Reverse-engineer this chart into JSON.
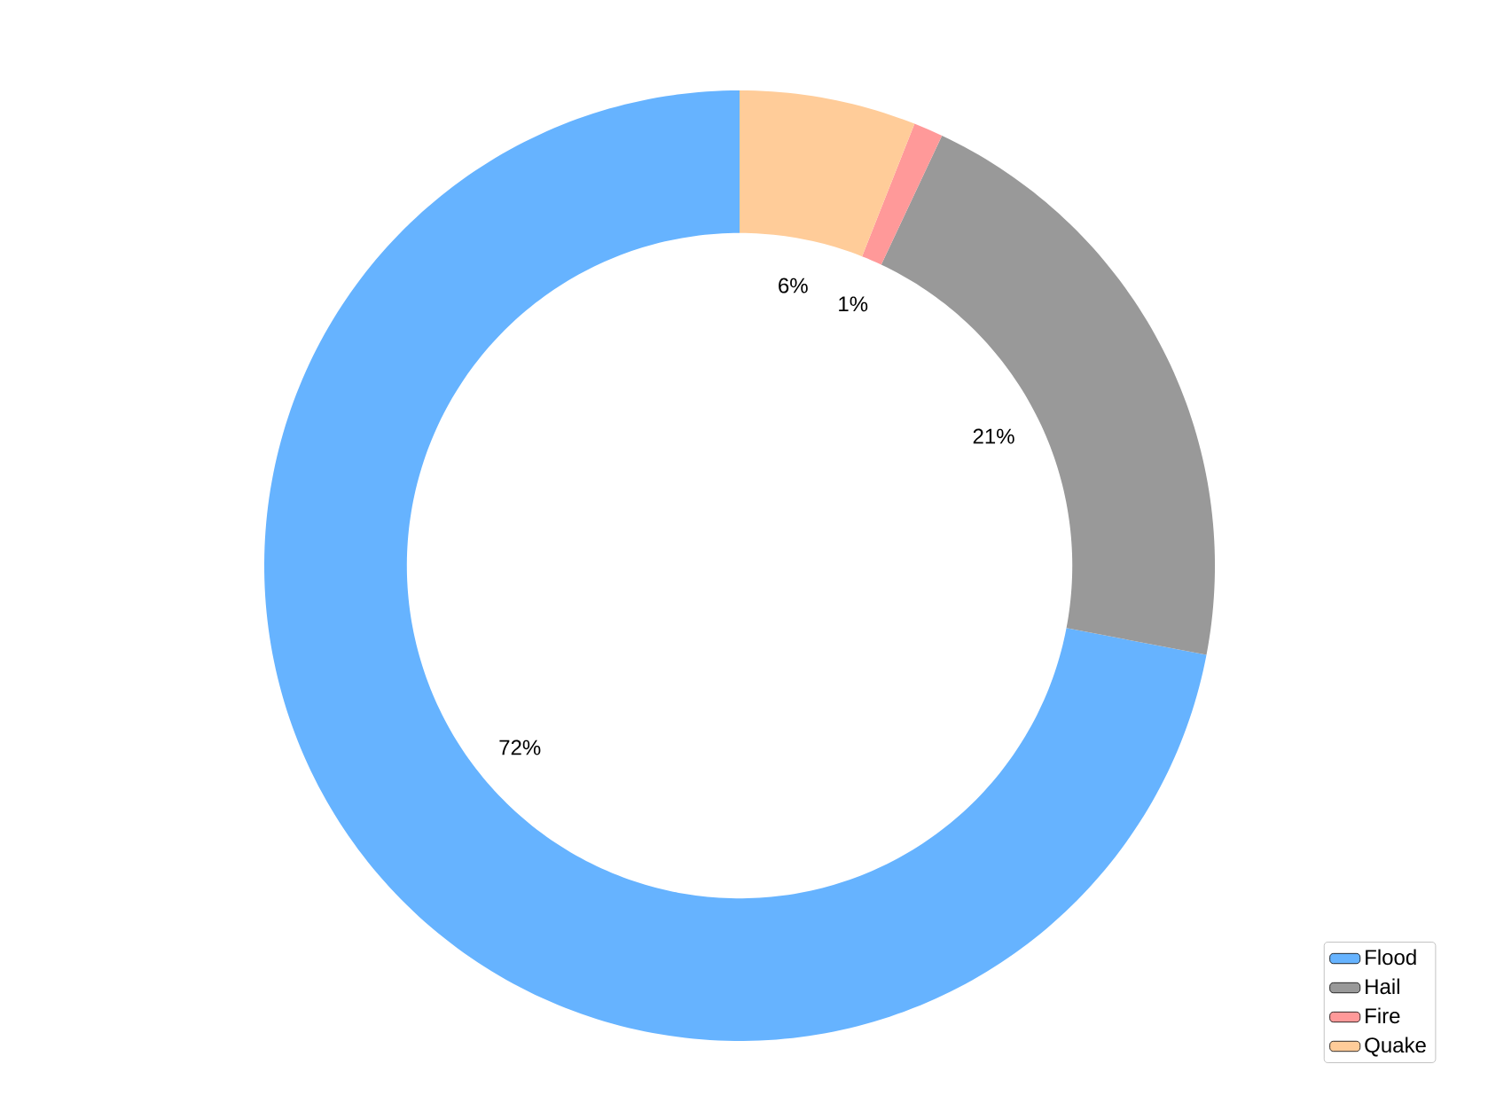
{
  "chart_data": {
    "type": "donut",
    "categories": [
      "Flood",
      "Hail",
      "Fire",
      "Quake"
    ],
    "values": [
      72,
      21,
      1,
      6
    ],
    "colors": [
      "#66b3ff",
      "#999999",
      "#ff9999",
      "#ffcc99"
    ],
    "value_labels": [
      "72%",
      "21%",
      "1%",
      "6%"
    ],
    "legend": "bottom right"
  }
}
